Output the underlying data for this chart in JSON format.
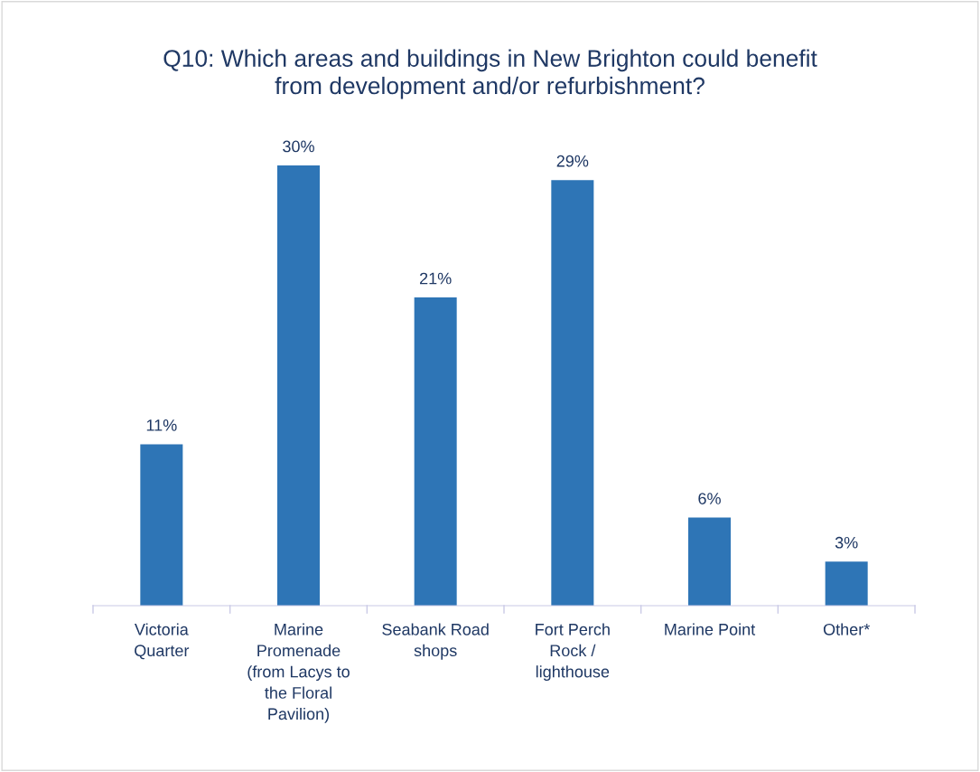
{
  "chart_data": {
    "type": "bar",
    "title": "Q10: Which areas and buildings in New Brighton could benefit\nfrom development and/or refurbishment?",
    "categories": [
      "Victoria\nQuarter",
      "Marine\nPromenade\n(from Lacys to\nthe Floral\nPavilion)",
      "Seabank Road\nshops",
      "Fort Perch\nRock /\nlighthouse",
      "Marine Point",
      "Other*"
    ],
    "values": [
      11,
      30,
      21,
      29,
      6,
      3
    ],
    "value_labels": [
      "11%",
      "30%",
      "21%",
      "29%",
      "6%",
      "3%"
    ],
    "color": "#2e75b6",
    "grid": false,
    "legend": false
  }
}
